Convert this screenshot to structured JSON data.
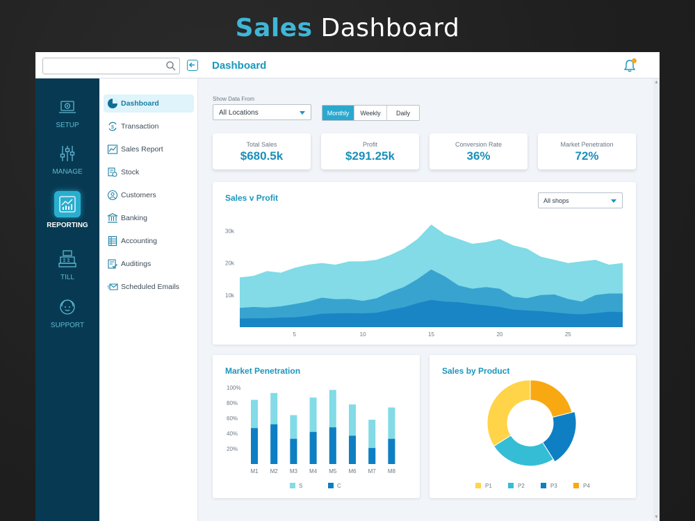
{
  "headline": {
    "accent": "Sales",
    "rest": "Dashboard"
  },
  "topbar": {
    "search_placeholder": "",
    "page_title": "Dashboard",
    "notifications": "1"
  },
  "rail": [
    {
      "label": "SETUP",
      "icon": "laptop-gear-icon"
    },
    {
      "label": "MANAGE",
      "icon": "sliders-icon"
    },
    {
      "label": "REPORTING",
      "icon": "report-chart-icon",
      "active": true
    },
    {
      "label": "TILL",
      "icon": "cash-register-icon"
    },
    {
      "label": "SUPPORT",
      "icon": "headset-icon"
    }
  ],
  "menu": [
    {
      "label": "Dashboard",
      "icon": "pie-chart-icon",
      "active": true
    },
    {
      "label": "Transaction",
      "icon": "currency-exchange-icon"
    },
    {
      "label": "Sales Report",
      "icon": "line-chart-icon"
    },
    {
      "label": "Stock",
      "icon": "stock-icon"
    },
    {
      "label": "Customers",
      "icon": "customers-icon"
    },
    {
      "label": "Banking",
      "icon": "bank-icon"
    },
    {
      "label": "Accounting",
      "icon": "ledger-icon"
    },
    {
      "label": "Auditings",
      "icon": "audit-icon"
    },
    {
      "label": "Scheduled Emails",
      "icon": "email-send-icon"
    }
  ],
  "filters": {
    "show_label": "Show Data From",
    "location": "All Locations",
    "periods": [
      "Monthly",
      "Weekly",
      "Daily"
    ],
    "active_period": "Monthly"
  },
  "kpis": [
    {
      "label": "Total Sales",
      "value": "$680.5k"
    },
    {
      "label": "Profit",
      "value": "$291.25k"
    },
    {
      "label": "Conversion Rate",
      "value": "36%"
    },
    {
      "label": "Market Penetration",
      "value": "72%"
    }
  ],
  "colors": {
    "accent": "#1a96bd",
    "light": "#82dbe6",
    "mid": "#38a3cf",
    "dark": "#1985c4",
    "p1": "#ffd448",
    "p2": "#35bdd6",
    "p3": "#0e7fc2",
    "p4": "#f8a912"
  },
  "chart_data": [
    {
      "type": "area",
      "title": "Sales v Profit",
      "filter": "All shops",
      "x": [
        1,
        2,
        3,
        4,
        5,
        6,
        7,
        8,
        9,
        10,
        11,
        12,
        13,
        14,
        15,
        16,
        17,
        18,
        19,
        20,
        21,
        22,
        23,
        24,
        25,
        26,
        27,
        28,
        29
      ],
      "xticks": [
        5,
        10,
        15,
        20,
        25
      ],
      "yticks": [
        "10k",
        "20k",
        "30k"
      ],
      "ylim": [
        0,
        34000
      ],
      "series": [
        {
          "values": [
            15500,
            16000,
            17500,
            17000,
            18500,
            19500,
            20000,
            19500,
            20500,
            20500,
            21000,
            22500,
            24500,
            27500,
            32000,
            29000,
            27500,
            26000,
            26500,
            27500,
            25500,
            24500,
            22000,
            21000,
            20000,
            20500,
            21000,
            19500,
            20000
          ]
        },
        {
          "values": [
            6000,
            6300,
            6100,
            6500,
            7200,
            8000,
            9200,
            8700,
            8800,
            8200,
            9000,
            11000,
            12500,
            15000,
            18000,
            15800,
            13000,
            12000,
            12500,
            12000,
            9500,
            9000,
            10000,
            10200,
            8800,
            8000,
            10000,
            10500,
            10500
          ]
        },
        {
          "values": [
            2700,
            2800,
            2800,
            3000,
            3100,
            3500,
            4200,
            4300,
            4400,
            4300,
            4500,
            5400,
            6200,
            7500,
            8500,
            8000,
            7800,
            7200,
            6800,
            6300,
            5500,
            5200,
            5000,
            4600,
            4200,
            4000,
            4400,
            4800,
            4700
          ]
        }
      ]
    },
    {
      "type": "bar",
      "title": "Market Penetration",
      "categories": [
        "M1",
        "M2",
        "M3",
        "M4",
        "M5",
        "M6",
        "M7",
        "M8"
      ],
      "yticks": [
        "20%",
        "40%",
        "60%",
        "80%",
        "100%"
      ],
      "ylim": [
        0,
        100
      ],
      "series": [
        {
          "name": "S",
          "values": [
            84,
            93,
            64,
            87,
            97,
            78,
            58,
            74
          ]
        },
        {
          "name": "C",
          "values": [
            47,
            52,
            33,
            42,
            48,
            37,
            21,
            33
          ]
        }
      ]
    },
    {
      "type": "pie",
      "title": "Sales by Product",
      "categories": [
        "P1",
        "P2",
        "P3",
        "P4"
      ],
      "values": [
        34,
        25,
        20,
        21
      ]
    }
  ]
}
